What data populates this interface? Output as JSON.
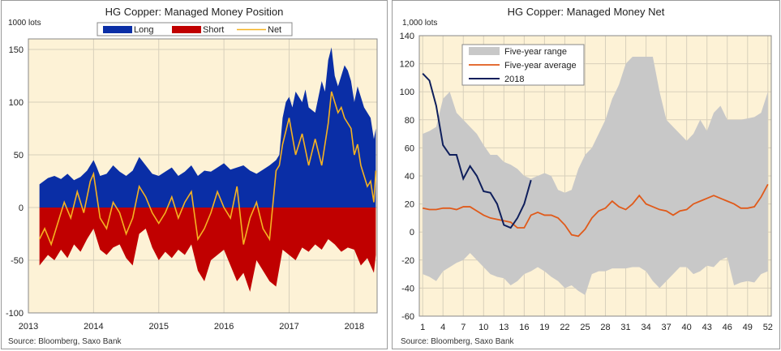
{
  "chart_data": [
    {
      "type": "area",
      "title": "HG Copper: Managed Money Position",
      "ylabel": "1000 lots",
      "source": "Source: Bloomberg, Saxo Bank",
      "ylim": [
        -100,
        160
      ],
      "yticks": [
        -100,
        -50,
        0,
        50,
        100,
        150
      ],
      "xticks": [
        "2013",
        "2014",
        "2015",
        "2016",
        "2017",
        "2018"
      ],
      "xlim": [
        2013.0,
        2018.35
      ],
      "legend": {
        "placement": "top",
        "entries": [
          "Long",
          "Short",
          "Net"
        ]
      },
      "colors": {
        "long": "#0a2ea6",
        "short": "#c00000",
        "net": "#f5b221",
        "plot_bg": "#fdf2d6"
      },
      "series": [
        {
          "name": "Long",
          "x": [
            2013.17,
            2013.3,
            2013.4,
            2013.5,
            2013.6,
            2013.7,
            2013.8,
            2013.9,
            2014.0,
            2014.05,
            2014.1,
            2014.2,
            2014.3,
            2014.4,
            2014.5,
            2014.6,
            2014.7,
            2014.8,
            2014.9,
            2015.0,
            2015.1,
            2015.2,
            2015.3,
            2015.4,
            2015.5,
            2015.6,
            2015.7,
            2015.8,
            2015.9,
            2016.0,
            2016.1,
            2016.2,
            2016.3,
            2016.4,
            2016.5,
            2016.6,
            2016.7,
            2016.8,
            2016.85,
            2016.9,
            2016.95,
            2017.0,
            2017.05,
            2017.1,
            2017.2,
            2017.25,
            2017.3,
            2017.4,
            2017.5,
            2017.55,
            2017.6,
            2017.65,
            2017.7,
            2017.75,
            2017.8,
            2017.85,
            2017.9,
            2017.95,
            2018.0,
            2018.05,
            2018.1,
            2018.15,
            2018.2,
            2018.25,
            2018.3,
            2018.33
          ],
          "values": [
            22,
            28,
            30,
            27,
            32,
            26,
            29,
            35,
            45,
            38,
            30,
            32,
            40,
            34,
            30,
            35,
            48,
            40,
            32,
            30,
            34,
            38,
            30,
            34,
            40,
            30,
            35,
            34,
            38,
            42,
            36,
            38,
            40,
            35,
            32,
            36,
            40,
            45,
            50,
            85,
            100,
            105,
            95,
            110,
            100,
            112,
            95,
            90,
            120,
            110,
            140,
            152,
            125,
            115,
            125,
            135,
            130,
            120,
            100,
            115,
            105,
            95,
            90,
            85,
            65,
            75
          ]
        },
        {
          "name": "Short",
          "x": [
            2013.17,
            2013.3,
            2013.4,
            2013.5,
            2013.6,
            2013.7,
            2013.8,
            2013.9,
            2014.0,
            2014.1,
            2014.2,
            2014.3,
            2014.4,
            2014.5,
            2014.6,
            2014.7,
            2014.8,
            2014.9,
            2015.0,
            2015.1,
            2015.2,
            2015.3,
            2015.4,
            2015.5,
            2015.6,
            2015.7,
            2015.8,
            2015.9,
            2016.0,
            2016.1,
            2016.2,
            2016.3,
            2016.4,
            2016.5,
            2016.6,
            2016.7,
            2016.8,
            2016.9,
            2017.0,
            2017.1,
            2017.2,
            2017.3,
            2017.4,
            2017.5,
            2017.6,
            2017.7,
            2017.8,
            2017.9,
            2018.0,
            2018.1,
            2018.2,
            2018.25,
            2018.3,
            2018.33
          ],
          "values": [
            -55,
            -45,
            -50,
            -40,
            -48,
            -35,
            -42,
            -30,
            -20,
            -40,
            -45,
            -38,
            -35,
            -48,
            -55,
            -25,
            -20,
            -38,
            -50,
            -42,
            -48,
            -40,
            -45,
            -35,
            -60,
            -70,
            -50,
            -45,
            -40,
            -55,
            -70,
            -62,
            -80,
            -50,
            -60,
            -70,
            -75,
            -40,
            -45,
            -50,
            -38,
            -42,
            -35,
            -40,
            -30,
            -35,
            -42,
            -38,
            -40,
            -55,
            -48,
            -55,
            -62,
            -45
          ]
        },
        {
          "name": "Net",
          "x": [
            2013.17,
            2013.25,
            2013.35,
            2013.45,
            2013.55,
            2013.65,
            2013.75,
            2013.85,
            2013.95,
            2014.0,
            2014.1,
            2014.2,
            2014.3,
            2014.4,
            2014.5,
            2014.6,
            2014.7,
            2014.8,
            2014.9,
            2015.0,
            2015.1,
            2015.2,
            2015.3,
            2015.4,
            2015.5,
            2015.6,
            2015.7,
            2015.8,
            2015.9,
            2016.0,
            2016.1,
            2016.2,
            2016.3,
            2016.4,
            2016.5,
            2016.6,
            2016.7,
            2016.8,
            2016.85,
            2016.9,
            2017.0,
            2017.1,
            2017.2,
            2017.3,
            2017.4,
            2017.5,
            2017.6,
            2017.65,
            2017.7,
            2017.75,
            2017.8,
            2017.85,
            2017.9,
            2017.95,
            2018.0,
            2018.05,
            2018.1,
            2018.15,
            2018.2,
            2018.25,
            2018.3,
            2018.33
          ],
          "values": [
            -30,
            -20,
            -35,
            -15,
            5,
            -10,
            15,
            -5,
            25,
            32,
            -10,
            -20,
            5,
            -5,
            -25,
            -10,
            20,
            10,
            -5,
            -15,
            -5,
            10,
            -10,
            5,
            15,
            -30,
            -20,
            -5,
            15,
            0,
            -10,
            20,
            -35,
            -10,
            5,
            -20,
            -30,
            35,
            40,
            60,
            85,
            50,
            70,
            40,
            65,
            40,
            80,
            110,
            100,
            90,
            95,
            85,
            80,
            75,
            50,
            60,
            40,
            30,
            20,
            25,
            5,
            35
          ]
        }
      ]
    },
    {
      "type": "line",
      "title": "HG Copper: Managed Money Net",
      "ylabel": "1,000 lots",
      "source": "Source: Bloomberg, Saxo Bank",
      "ylim": [
        -60,
        140
      ],
      "yticks": [
        -60,
        -40,
        -20,
        0,
        20,
        40,
        60,
        80,
        100,
        120,
        140
      ],
      "xlim": [
        0.5,
        52.5
      ],
      "xticks": [
        1,
        4,
        7,
        10,
        13,
        16,
        19,
        22,
        25,
        28,
        31,
        34,
        37,
        40,
        43,
        46,
        49,
        52
      ],
      "legend": {
        "placement": "top-left",
        "entries": [
          "Five-year range",
          "Five-year average",
          "2018"
        ]
      },
      "colors": {
        "range": "#c8c8c8",
        "average": "#e05a1a",
        "current": "#0f1f5c",
        "plot_bg": "#fdf2d6"
      },
      "x": [
        1,
        2,
        3,
        4,
        5,
        6,
        7,
        8,
        9,
        10,
        11,
        12,
        13,
        14,
        15,
        16,
        17,
        18,
        19,
        20,
        21,
        22,
        23,
        24,
        25,
        26,
        27,
        28,
        29,
        30,
        31,
        32,
        33,
        34,
        35,
        36,
        37,
        38,
        39,
        40,
        41,
        42,
        43,
        44,
        45,
        46,
        47,
        48,
        49,
        50,
        51,
        52
      ],
      "range_high": [
        70,
        72,
        75,
        95,
        100,
        85,
        80,
        75,
        70,
        62,
        55,
        55,
        50,
        48,
        45,
        40,
        38,
        40,
        42,
        40,
        30,
        28,
        30,
        45,
        55,
        60,
        70,
        80,
        95,
        105,
        120,
        125,
        125,
        125,
        125,
        100,
        80,
        75,
        70,
        65,
        70,
        80,
        72,
        85,
        90,
        80,
        80,
        80,
        81,
        82,
        85,
        100
      ],
      "range_low": [
        -30,
        -32,
        -35,
        -28,
        -25,
        -22,
        -20,
        -15,
        -20,
        -25,
        -30,
        -32,
        -33,
        -38,
        -35,
        -30,
        -28,
        -25,
        -28,
        -32,
        -35,
        -40,
        -38,
        -42,
        -45,
        -30,
        -28,
        -28,
        -26,
        -26,
        -26,
        -25,
        -25,
        -28,
        -35,
        -40,
        -35,
        -30,
        -25,
        -25,
        -30,
        -28,
        -24,
        -25,
        -20,
        -18,
        -38,
        -36,
        -35,
        -36,
        -30,
        -28
      ],
      "series": [
        {
          "name": "Five-year average",
          "values": [
            17,
            16,
            16,
            17,
            17,
            16,
            18,
            18,
            15,
            12,
            10,
            9,
            8,
            7,
            3,
            3,
            12,
            14,
            12,
            12,
            10,
            5,
            -2,
            -3,
            2,
            10,
            15,
            17,
            22,
            18,
            16,
            20,
            26,
            20,
            18,
            16,
            15,
            12,
            15,
            16,
            20,
            22,
            24,
            26,
            24,
            22,
            20,
            17,
            17,
            18,
            25,
            34
          ]
        },
        {
          "name": "2018",
          "x": [
            1,
            2,
            3,
            4,
            5,
            6,
            7,
            8,
            9,
            10,
            11,
            12,
            13,
            14,
            15,
            16,
            17
          ],
          "values": [
            113,
            108,
            90,
            62,
            55,
            55,
            38,
            47,
            40,
            29,
            28,
            20,
            5,
            3,
            10,
            20,
            37
          ]
        }
      ]
    }
  ]
}
